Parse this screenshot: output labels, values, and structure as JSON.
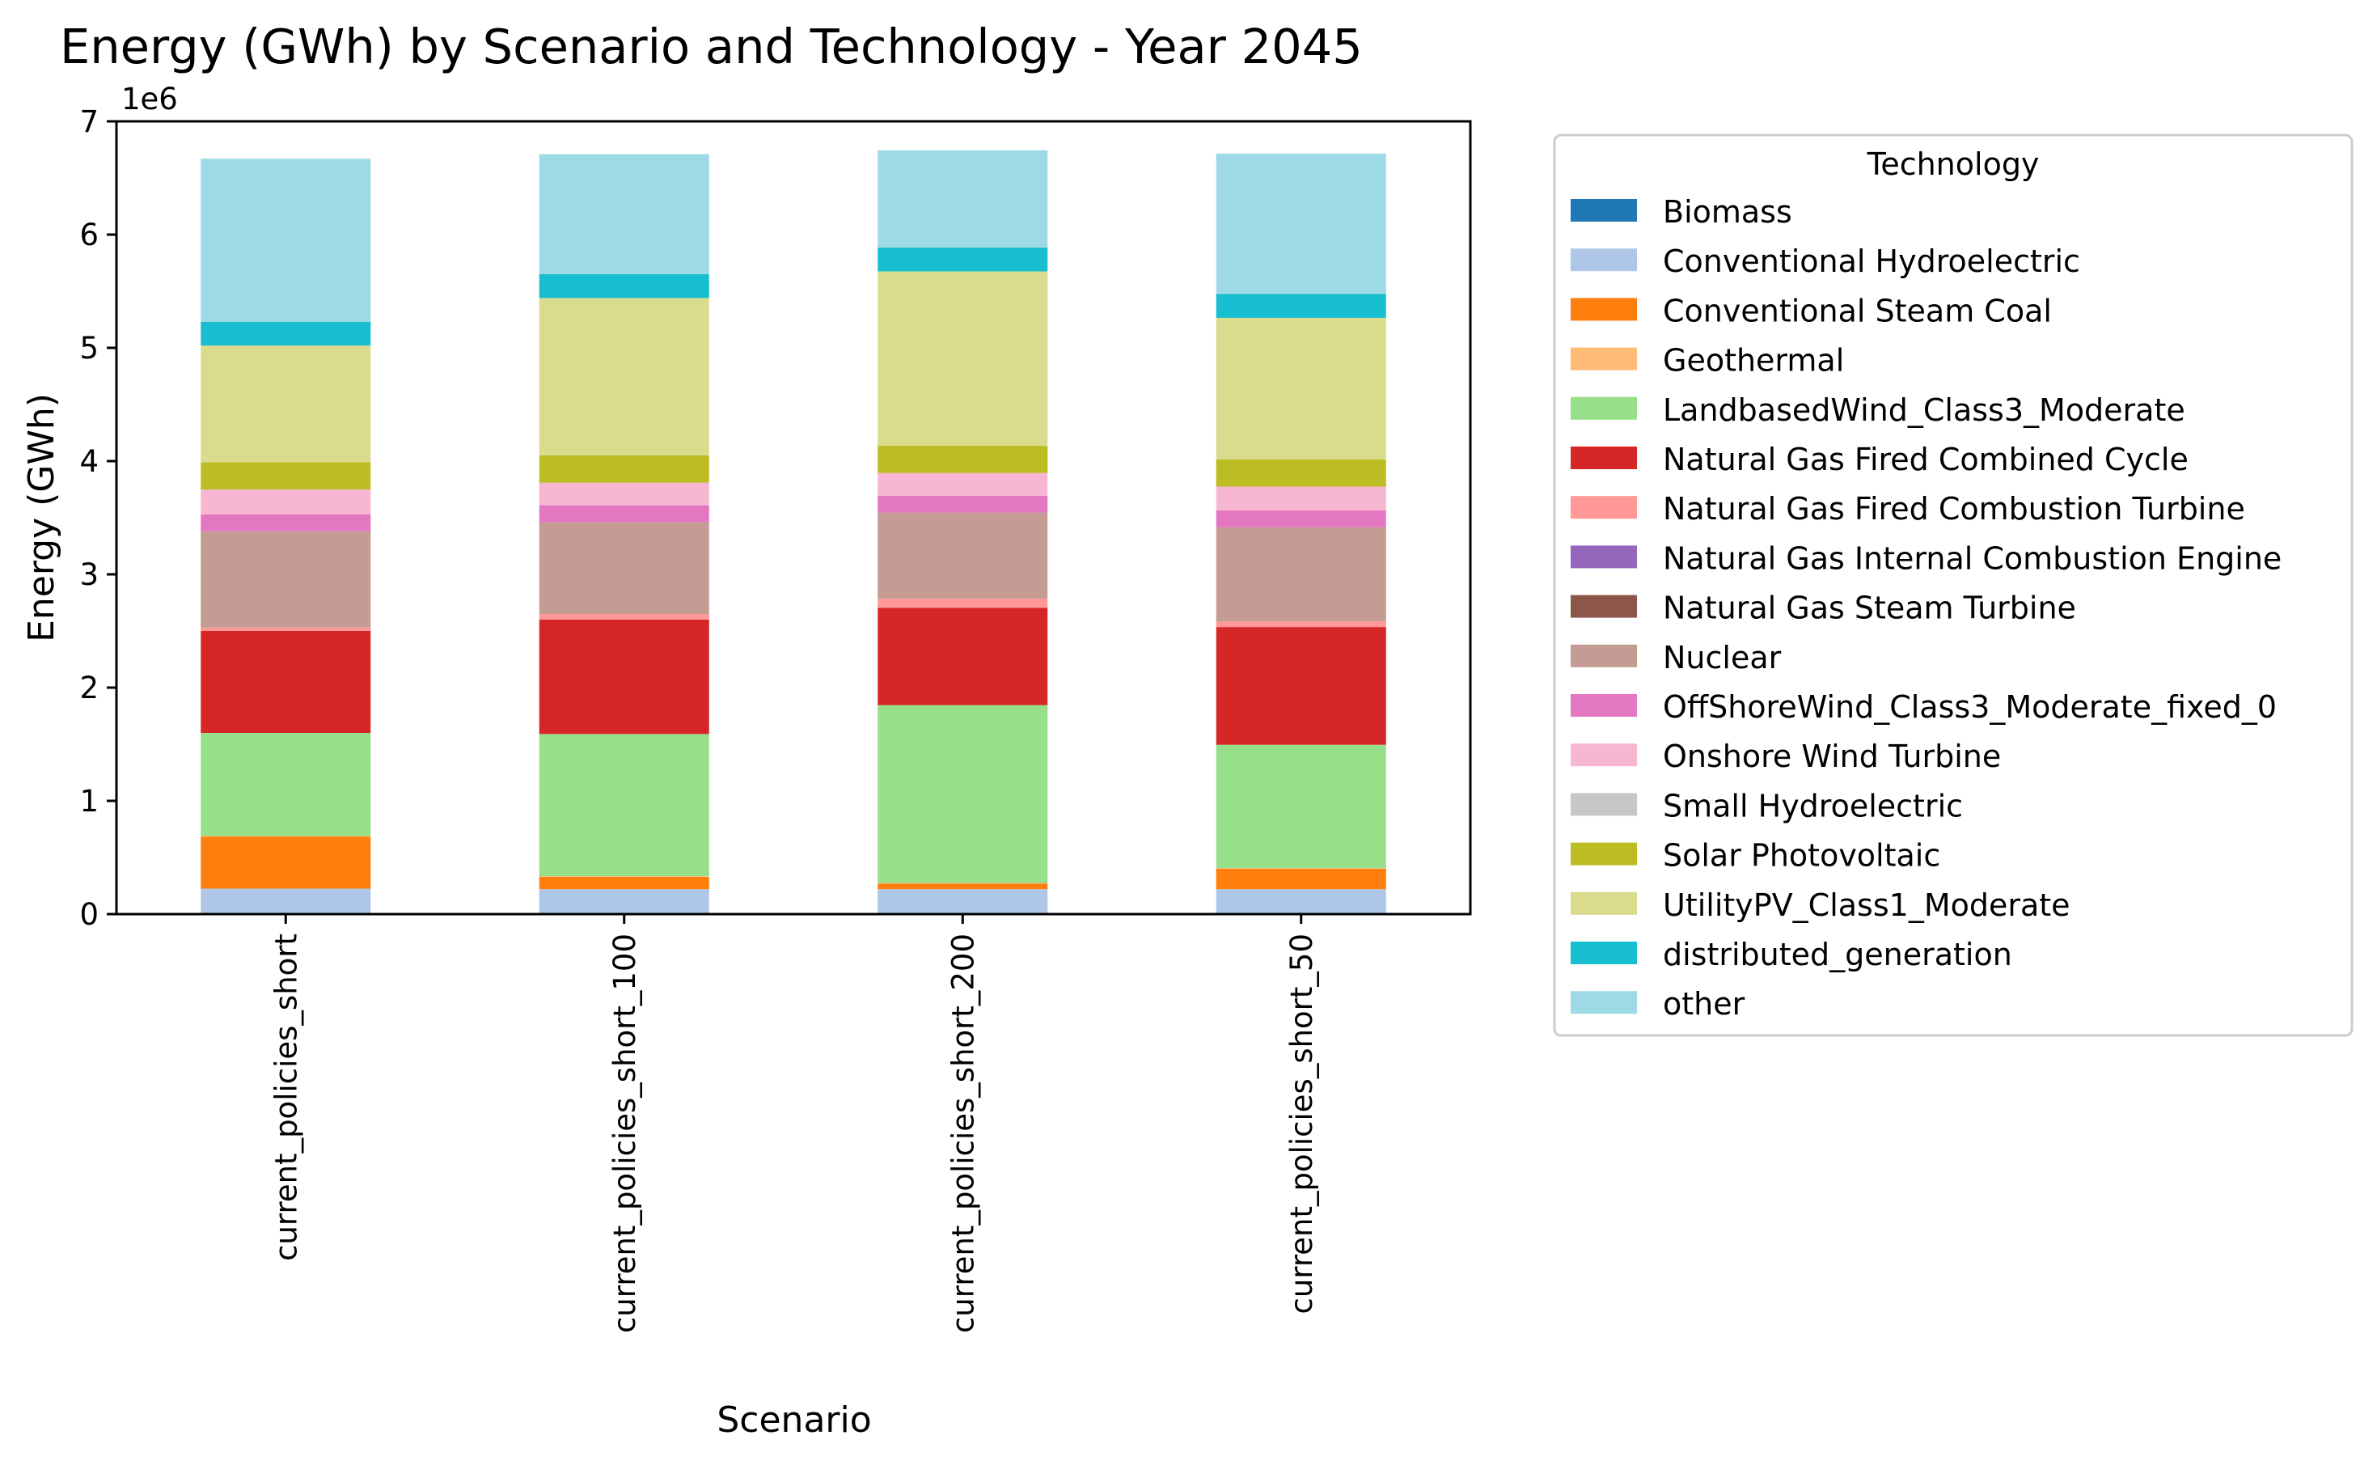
{
  "chart_data": {
    "type": "bar",
    "stacked": true,
    "title": "Energy (GWh) by Scenario and Technology - Year 2045",
    "xlabel": "Scenario",
    "ylabel": "Energy (GWh)",
    "y_offset_label": "1e6",
    "y_scale": 1000000,
    "ylim": [
      0,
      7000000
    ],
    "yticks": [
      0,
      1,
      2,
      3,
      4,
      5,
      6,
      7
    ],
    "grid": false,
    "legend_title": "Technology",
    "legend_position": "outside-right",
    "categories": [
      "current_policies_short",
      "current_policies_short_100",
      "current_policies_short_200",
      "current_policies_short_50"
    ],
    "series": [
      {
        "name": "Biomass",
        "color": "#1f77b4",
        "values": [
          5000,
          5000,
          5000,
          5000
        ]
      },
      {
        "name": "Conventional Hydroelectric",
        "color": "#aec7e8",
        "values": [
          220000,
          215000,
          215000,
          215000
        ]
      },
      {
        "name": "Conventional Steam Coal",
        "color": "#ff7f0e",
        "values": [
          460000,
          110000,
          50000,
          180000
        ]
      },
      {
        "name": "Geothermal",
        "color": "#ffbb78",
        "values": [
          5000,
          5000,
          5000,
          5000
        ]
      },
      {
        "name": "LandbasedWind_Class3_Moderate",
        "color": "#98df8a",
        "values": [
          910000,
          1255000,
          1570000,
          1090000
        ]
      },
      {
        "name": "Natural Gas Fired Combined Cycle",
        "color": "#d62728",
        "values": [
          900000,
          1010000,
          860000,
          1040000
        ]
      },
      {
        "name": "Natural Gas Fired Combustion Turbine",
        "color": "#ff9896",
        "values": [
          30000,
          50000,
          80000,
          50000
        ]
      },
      {
        "name": "Natural Gas Internal Combustion Engine",
        "color": "#9467bd",
        "values": [
          0,
          0,
          0,
          0
        ]
      },
      {
        "name": "Natural Gas Steam Turbine",
        "color": "#8c564b",
        "values": [
          0,
          0,
          0,
          0
        ]
      },
      {
        "name": "Nuclear",
        "color": "#c49c94",
        "values": [
          850000,
          810000,
          760000,
          830000
        ]
      },
      {
        "name": "OffShoreWind_Class3_Moderate_fixed_0",
        "color": "#e377c2",
        "values": [
          150000,
          150000,
          150000,
          150000
        ]
      },
      {
        "name": "Onshore Wind Turbine",
        "color": "#f7b6d2",
        "values": [
          220000,
          200000,
          200000,
          210000
        ]
      },
      {
        "name": "Small Hydroelectric",
        "color": "#c7c7c7",
        "values": [
          0,
          0,
          0,
          0
        ]
      },
      {
        "name": "Solar Photovoltaic",
        "color": "#bcbd22",
        "values": [
          240000,
          240000,
          240000,
          240000
        ]
      },
      {
        "name": "UtilityPV_Class1_Moderate",
        "color": "#dbdb8d",
        "values": [
          1030000,
          1390000,
          1540000,
          1250000
        ]
      },
      {
        "name": "distributed_generation",
        "color": "#17becf",
        "values": [
          210000,
          210000,
          210000,
          210000
        ]
      },
      {
        "name": "other",
        "color": "#9edae5",
        "values": [
          1440000,
          1060000,
          860000,
          1240000
        ]
      }
    ]
  }
}
